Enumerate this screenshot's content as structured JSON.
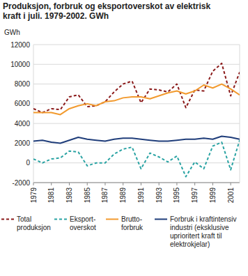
{
  "chart_data": {
    "type": "line",
    "title": "Produksjon, forbruk og eksportoverskot av elektrisk\nkraft i juli. 1979-2002. GWh",
    "y_label": "GWh",
    "x": [
      1979,
      1980,
      1981,
      1982,
      1983,
      1984,
      1985,
      1986,
      1987,
      1988,
      1989,
      1990,
      1991,
      1992,
      1993,
      1994,
      1995,
      1996,
      1997,
      1998,
      1999,
      2000,
      2001,
      2002
    ],
    "xlim": [
      1979,
      2002
    ],
    "xticks": [
      1979,
      1981,
      1983,
      1985,
      1987,
      1989,
      1991,
      1993,
      1995,
      1997,
      1999,
      2001
    ],
    "ylim": [
      -2000,
      12000
    ],
    "yticks": [
      -2000,
      0,
      2000,
      4000,
      6000,
      8000,
      10000,
      12000
    ],
    "grid": true,
    "legend": "bottom",
    "series": [
      {
        "name": "Total\nproduksjon",
        "color": "#8b1a1a",
        "line_style": "dashed",
        "values": [
          5500,
          5100,
          5500,
          5400,
          6700,
          6900,
          5700,
          5800,
          6200,
          7200,
          8000,
          8300,
          6100,
          7500,
          7400,
          7200,
          8000,
          5600,
          7400,
          7300,
          9300,
          10100,
          6800,
          9200
        ]
      },
      {
        "name": "Eksport-\noverskot",
        "color": "#2aa3a3",
        "line_style": "dashed",
        "values": [
          400,
          0,
          400,
          500,
          1200,
          1100,
          -300,
          0,
          0,
          900,
          1400,
          1600,
          -600,
          1000,
          600,
          100,
          700,
          -1400,
          100,
          -600,
          1700,
          2100,
          -700,
          2300
        ]
      },
      {
        "name": "Brutto-\nforbruk",
        "color": "#f29a2e",
        "line_style": "solid",
        "values": [
          5100,
          5100,
          5100,
          4900,
          5500,
          5800,
          6000,
          5800,
          6200,
          6300,
          6600,
          6700,
          6700,
          6500,
          6800,
          7100,
          7300,
          7000,
          7300,
          7900,
          7600,
          8000,
          7500,
          6900
        ]
      },
      {
        "name": "Forbruk i kraftintensiv\nindustri (eksklusive\nuprioritert kraft til\nelektrokjelar)",
        "color": "#1f3d7a",
        "line_style": "solid",
        "values": [
          2200,
          2300,
          2100,
          2000,
          2300,
          2600,
          2400,
          2300,
          2200,
          2400,
          2500,
          2500,
          2400,
          2300,
          2200,
          2200,
          2300,
          2400,
          2400,
          2500,
          2400,
          2700,
          2600,
          2400
        ]
      }
    ]
  }
}
